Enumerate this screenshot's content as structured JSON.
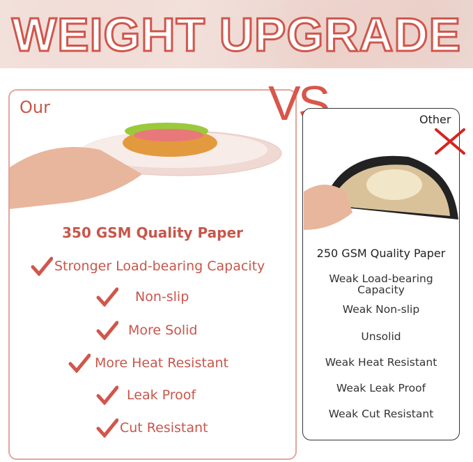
{
  "title": "WEIGHT UPGRADE",
  "vs": "VS",
  "ours": {
    "label": "Our",
    "heading": "350 GSM Quality Paper",
    "features": [
      "Stronger Load-bearing Capacity",
      "Non-slip",
      "More Solid",
      "More Heat Resistant",
      "Leak Proof",
      "Cut Resistant"
    ]
  },
  "other": {
    "label": "Other",
    "heading": "250 GSM Quality Paper",
    "features": [
      "Weak Load-bearing Capacity",
      "Weak Non-slip",
      "Unsolid",
      "Weak Heat Resistant",
      "Weak Leak Proof",
      "Weak Cut Resistant"
    ]
  },
  "icons": {
    "check": "check-icon",
    "cross": "x-icon"
  },
  "colors": {
    "accent": "#d0564c",
    "text_other": "#333333"
  }
}
